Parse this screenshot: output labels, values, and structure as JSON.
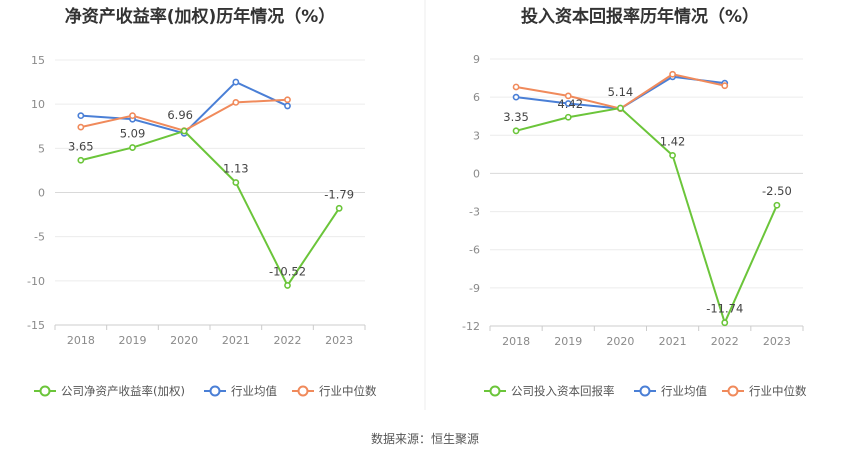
{
  "source_label": "数据来源：恒生聚源",
  "chart_data": [
    {
      "type": "line",
      "title": "净资产收益率(加权)历年情况（%）",
      "categories": [
        "2018",
        "2019",
        "2020",
        "2021",
        "2022",
        "2023"
      ],
      "ylim": [
        -15,
        15
      ],
      "yticks": [
        15,
        10,
        5,
        0,
        -5,
        -10,
        -15
      ],
      "grid": true,
      "legend_position": "bottom",
      "series": [
        {
          "name": "公司净资产收益率(加权)",
          "color": "#6bc53a",
          "values": [
            3.65,
            5.09,
            6.96,
            1.13,
            -10.52,
            -1.79
          ],
          "labels": [
            "3.65",
            "5.09",
            "6.96",
            "1.13",
            "-10.52",
            "-1.79"
          ]
        },
        {
          "name": "行业均值",
          "color": "#4a7fd6",
          "values": [
            8.7,
            8.3,
            6.7,
            12.5,
            9.8,
            null
          ],
          "labels": []
        },
        {
          "name": "行业中位数",
          "color": "#f08a5b",
          "values": [
            7.4,
            8.7,
            7.0,
            10.2,
            10.5,
            null
          ],
          "labels": []
        }
      ]
    },
    {
      "type": "line",
      "title": "投入资本回报率历年情况（%）",
      "categories": [
        "2018",
        "2019",
        "2020",
        "2021",
        "2022",
        "2023"
      ],
      "ylim": [
        -12,
        9
      ],
      "yticks": [
        9,
        6,
        3,
        0,
        -3,
        -6,
        -9,
        -12
      ],
      "grid": true,
      "legend_position": "bottom",
      "series": [
        {
          "name": "公司投入资本回报率",
          "color": "#6bc53a",
          "values": [
            3.35,
            4.42,
            5.14,
            1.42,
            -11.74,
            -2.5
          ],
          "labels": [
            "3.35",
            "4.42",
            "5.14",
            "1.42",
            "-11.74",
            "-2.50"
          ]
        },
        {
          "name": "行业均值",
          "color": "#4a7fd6",
          "values": [
            6.0,
            5.5,
            5.1,
            7.6,
            7.1,
            null
          ],
          "labels": []
        },
        {
          "name": "行业中位数",
          "color": "#f08a5b",
          "values": [
            6.8,
            6.1,
            5.1,
            7.8,
            6.9,
            null
          ],
          "labels": []
        }
      ]
    }
  ]
}
